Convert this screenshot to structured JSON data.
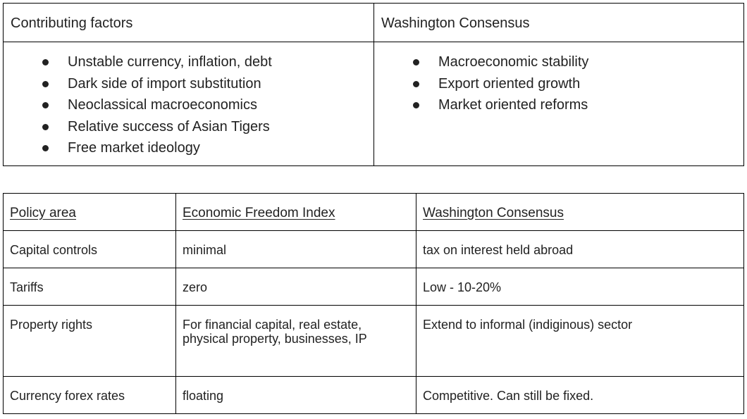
{
  "factors_table": {
    "headers": [
      "Contributing factors",
      "Washington Consensus"
    ],
    "contributing_factors": [
      "Unstable currency, inflation, debt",
      "Dark side of import substitution",
      "Neoclassical macroeconomics",
      "Relative success of Asian Tigers",
      "Free market ideology"
    ],
    "washington_consensus": [
      "Macroeconomic stability",
      "Export oriented growth",
      "Market oriented reforms"
    ]
  },
  "policy_table": {
    "headers": [
      "Policy area",
      "Economic Freedom Index",
      "Washington Consensus"
    ],
    "rows": [
      [
        "Capital controls",
        "minimal",
        "tax on interest held abroad"
      ],
      [
        "Tariffs",
        "zero",
        "Low - 10-20%"
      ],
      [
        "Property rights",
        "For financial capital, real estate, physical property, businesses, IP",
        "Extend to informal (indiginous) sector"
      ],
      [
        "Currency forex rates",
        "floating",
        "Competitive. Can still be fixed."
      ]
    ]
  }
}
